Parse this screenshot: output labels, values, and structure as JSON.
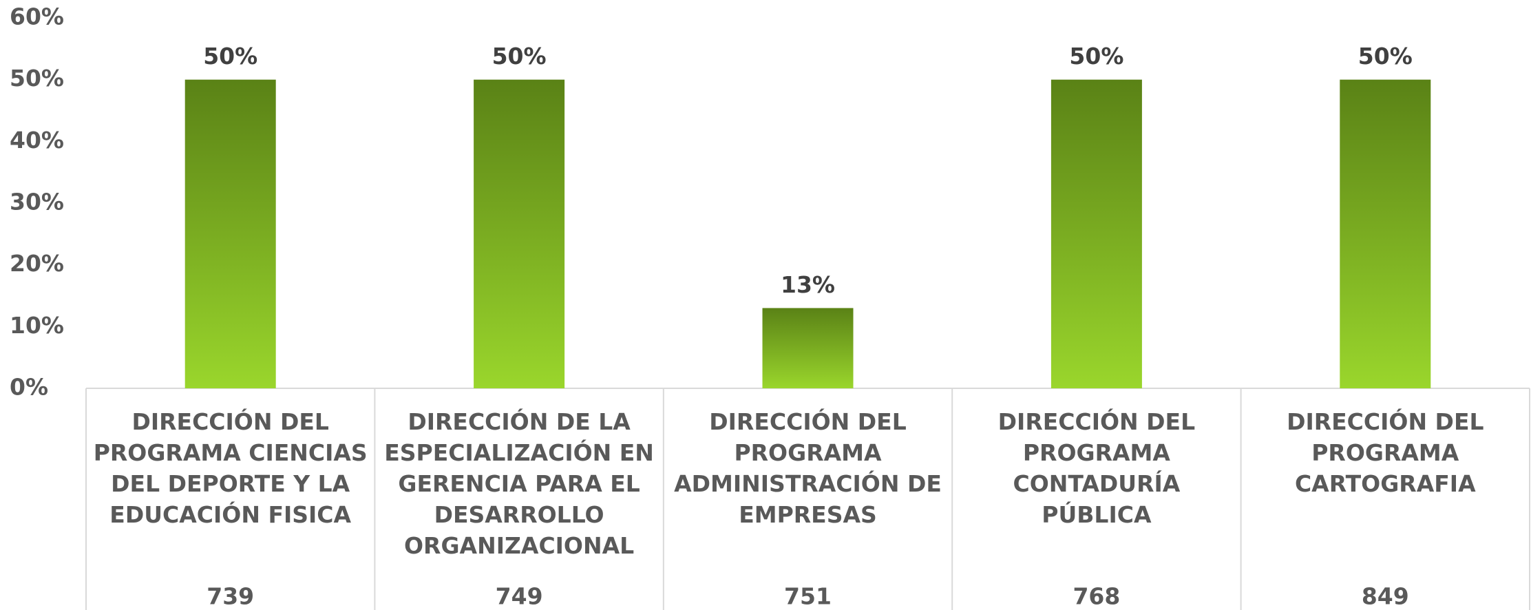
{
  "chart_data": {
    "type": "bar",
    "categories": [
      "DIRECCIÓN DEL PROGRAMA CIENCIAS DEL DEPORTE Y LA EDUCACIÓN FISICA",
      "DIRECCIÓN DE LA ESPECIALIZACIÓN EN GERENCIA PARA EL DESARROLLO ORGANIZACIONAL",
      "DIRECCIÓN DEL PROGRAMA ADMINISTRACIÓN DE EMPRESAS",
      "DIRECCIÓN DEL PROGRAMA CONTADURÍA PÚBLICA",
      "DIRECCIÓN DEL PROGRAMA CARTOGRAFIA"
    ],
    "category_codes": [
      "739",
      "749",
      "751",
      "768",
      "849"
    ],
    "values": [
      50,
      50,
      13,
      50,
      50
    ],
    "value_labels": [
      "50%",
      "50%",
      "13%",
      "50%",
      "50%"
    ],
    "color": [
      "#5a8216",
      "#9ad62c"
    ],
    "ylim": [
      0,
      60
    ],
    "yticks": [
      {
        "value": 0,
        "label": "0%"
      },
      {
        "value": 10,
        "label": "10%"
      },
      {
        "value": 20,
        "label": "20%"
      },
      {
        "value": 30,
        "label": "30%"
      },
      {
        "value": 40,
        "label": "40%"
      },
      {
        "value": 50,
        "label": "50%"
      },
      {
        "value": 60,
        "label": "60%"
      }
    ],
    "grid": false
  }
}
